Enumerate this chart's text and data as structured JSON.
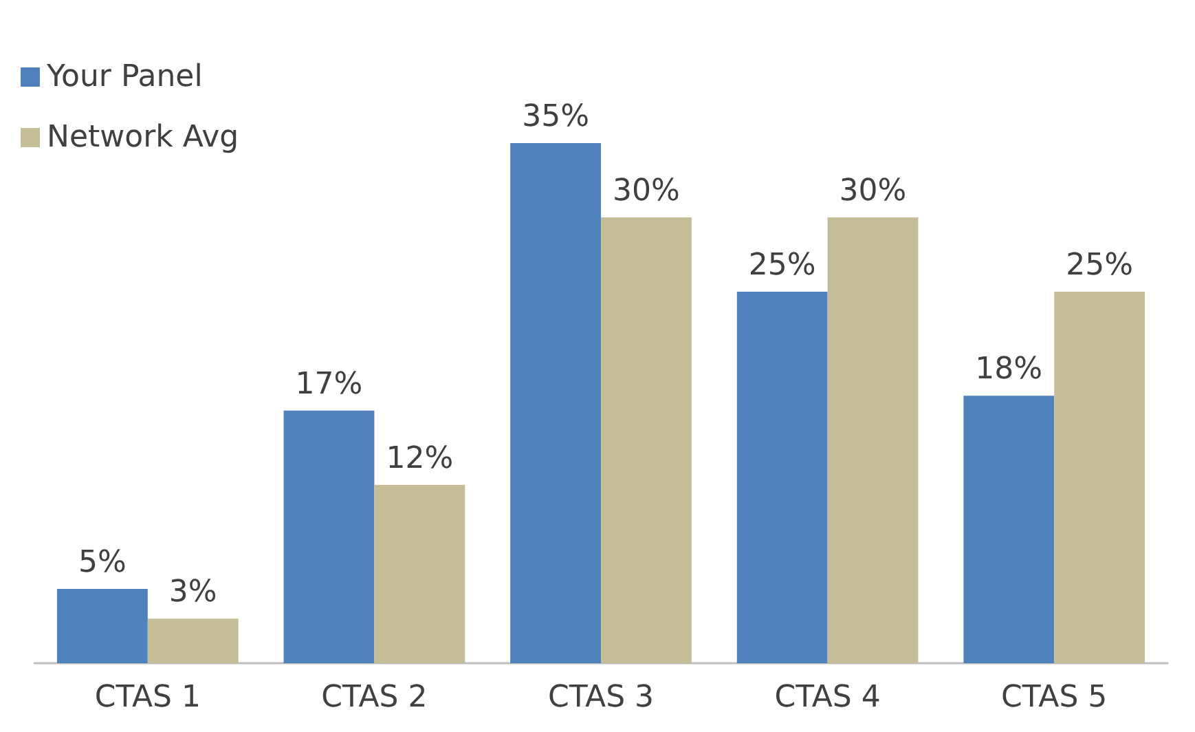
{
  "chart_data": {
    "type": "bar",
    "categories": [
      "CTAS 1",
      "CTAS 2",
      "CTAS 3",
      "CTAS 4",
      "CTAS 5"
    ],
    "series": [
      {
        "name": "Your Panel",
        "color": "#4f81bd",
        "values": [
          5,
          17,
          35,
          25,
          18
        ],
        "value_labels": [
          "5%",
          "17%",
          "35%",
          "25%",
          "18%"
        ]
      },
      {
        "name": "Network Avg",
        "color": "#c4bd97",
        "values": [
          3,
          12,
          30,
          30,
          25
        ],
        "value_labels": [
          "3%",
          "12%",
          "30%",
          "30%",
          "25%"
        ]
      }
    ],
    "legend": "top left",
    "grid": false
  }
}
